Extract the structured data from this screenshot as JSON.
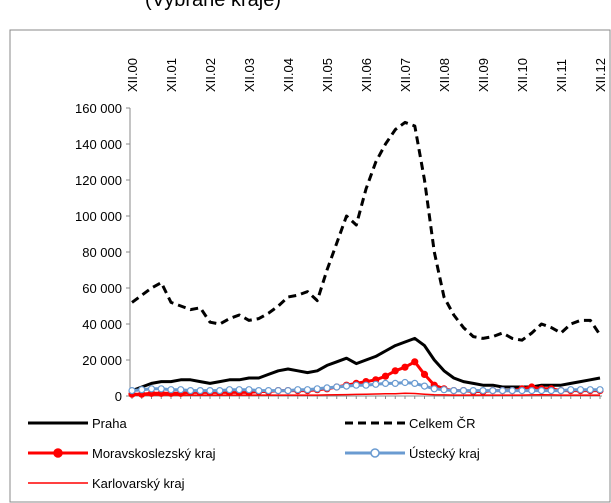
{
  "chart_data": {
    "type": "line",
    "title": "(Vybrané kraje)",
    "categories": [
      "XII.00",
      null,
      null,
      null,
      "XII.01",
      null,
      null,
      null,
      "XII.02",
      null,
      null,
      null,
      "XII.03",
      null,
      null,
      null,
      "XII.04",
      null,
      null,
      null,
      "XII.05",
      null,
      null,
      null,
      "XII.06",
      null,
      null,
      null,
      "XII.07",
      null,
      null,
      null,
      "XII.08",
      null,
      null,
      null,
      "XII.09",
      null,
      null,
      null,
      "XII.10",
      null,
      null,
      null,
      "XII.11",
      null,
      null,
      null,
      "XII.12"
    ],
    "ylim": [
      0,
      160000
    ],
    "yticks": [
      0,
      {
        "value": 20000,
        "label": "20 000"
      },
      {
        "value": 40000,
        "label": "40 000"
      },
      {
        "value": 60000,
        "label": "60 000"
      },
      {
        "value": 80000,
        "label": "80 000"
      },
      {
        "value": 100000,
        "label": "100 000"
      },
      {
        "value": 120000,
        "label": "120 000"
      },
      {
        "value": 140000,
        "label": "140 000"
      },
      {
        "value": 160000,
        "label": "160 000"
      }
    ],
    "series": [
      {
        "name": "Praha",
        "color": "#000000",
        "width": 3,
        "dash": false,
        "marker": null,
        "values": [
          3000,
          5000,
          7000,
          8000,
          8000,
          9000,
          9000,
          8000,
          7000,
          8000,
          9000,
          9000,
          10000,
          10000,
          12000,
          14000,
          15000,
          14000,
          13000,
          14000,
          17000,
          19000,
          21000,
          18000,
          20000,
          22000,
          25000,
          28000,
          30000,
          32000,
          28000,
          20000,
          14000,
          10000,
          8000,
          7000,
          6000,
          6000,
          5000,
          5000,
          5000,
          5000,
          6000,
          6000,
          6000,
          7000,
          8000,
          9000,
          10000
        ]
      },
      {
        "name": "Celkem ČR",
        "color": "#000000",
        "width": 3,
        "dash": true,
        "marker": null,
        "values": [
          52000,
          56000,
          60000,
          63000,
          52000,
          50000,
          48000,
          49000,
          41000,
          40000,
          43000,
          45000,
          42000,
          43000,
          46000,
          50000,
          55000,
          56000,
          58000,
          53000,
          70000,
          85000,
          100000,
          95000,
          115000,
          130000,
          140000,
          148000,
          152000,
          150000,
          120000,
          80000,
          55000,
          45000,
          38000,
          33000,
          32000,
          33000,
          35000,
          32000,
          31000,
          35000,
          40000,
          38000,
          35000,
          40000,
          42000,
          42000,
          34000
        ]
      },
      {
        "name": "Moravskoslezský kraj",
        "color": "#ff0000",
        "width": 3,
        "dash": false,
        "marker": "filled",
        "values": [
          1000,
          1000,
          1500,
          1500,
          1500,
          1500,
          2000,
          2000,
          2000,
          2000,
          2000,
          2000,
          2000,
          2500,
          2500,
          3000,
          3000,
          3000,
          3000,
          3500,
          4000,
          5000,
          6000,
          7000,
          8000,
          9000,
          11000,
          14000,
          16000,
          19000,
          12000,
          6000,
          4000,
          3000,
          3000,
          2500,
          2500,
          3000,
          3000,
          3000,
          4000,
          5000,
          4000,
          4000,
          3000,
          3000,
          3000,
          3000,
          3000
        ]
      },
      {
        "name": "Ústecký kraj",
        "color": "#6a9bd1",
        "width": 3,
        "dash": false,
        "marker": "hollow",
        "values": [
          3000,
          3500,
          4000,
          4000,
          3500,
          3500,
          3000,
          3000,
          3000,
          3000,
          3500,
          3500,
          3500,
          3000,
          3000,
          3000,
          3000,
          3500,
          3500,
          4000,
          4500,
          5000,
          5500,
          6000,
          6000,
          6500,
          7000,
          7000,
          7500,
          7000,
          5500,
          4000,
          3500,
          3000,
          3000,
          3000,
          3000,
          3000,
          3000,
          3000,
          3000,
          3000,
          3000,
          3000,
          3000,
          3500,
          3500,
          3500,
          3500
        ]
      },
      {
        "name": "Karlovarský kraj",
        "color": "#ff0000",
        "width": 1.5,
        "dash": false,
        "marker": null,
        "values": [
          500,
          500,
          500,
          500,
          500,
          500,
          500,
          500,
          500,
          500,
          500,
          500,
          500,
          500,
          500,
          500,
          500,
          500,
          500,
          500,
          600,
          700,
          800,
          900,
          1000,
          1100,
          1200,
          1300,
          1500,
          1400,
          1000,
          700,
          600,
          500,
          500,
          500,
          500,
          500,
          500,
          500,
          500,
          600,
          700,
          600,
          500,
          500,
          500,
          500,
          500
        ]
      }
    ]
  }
}
